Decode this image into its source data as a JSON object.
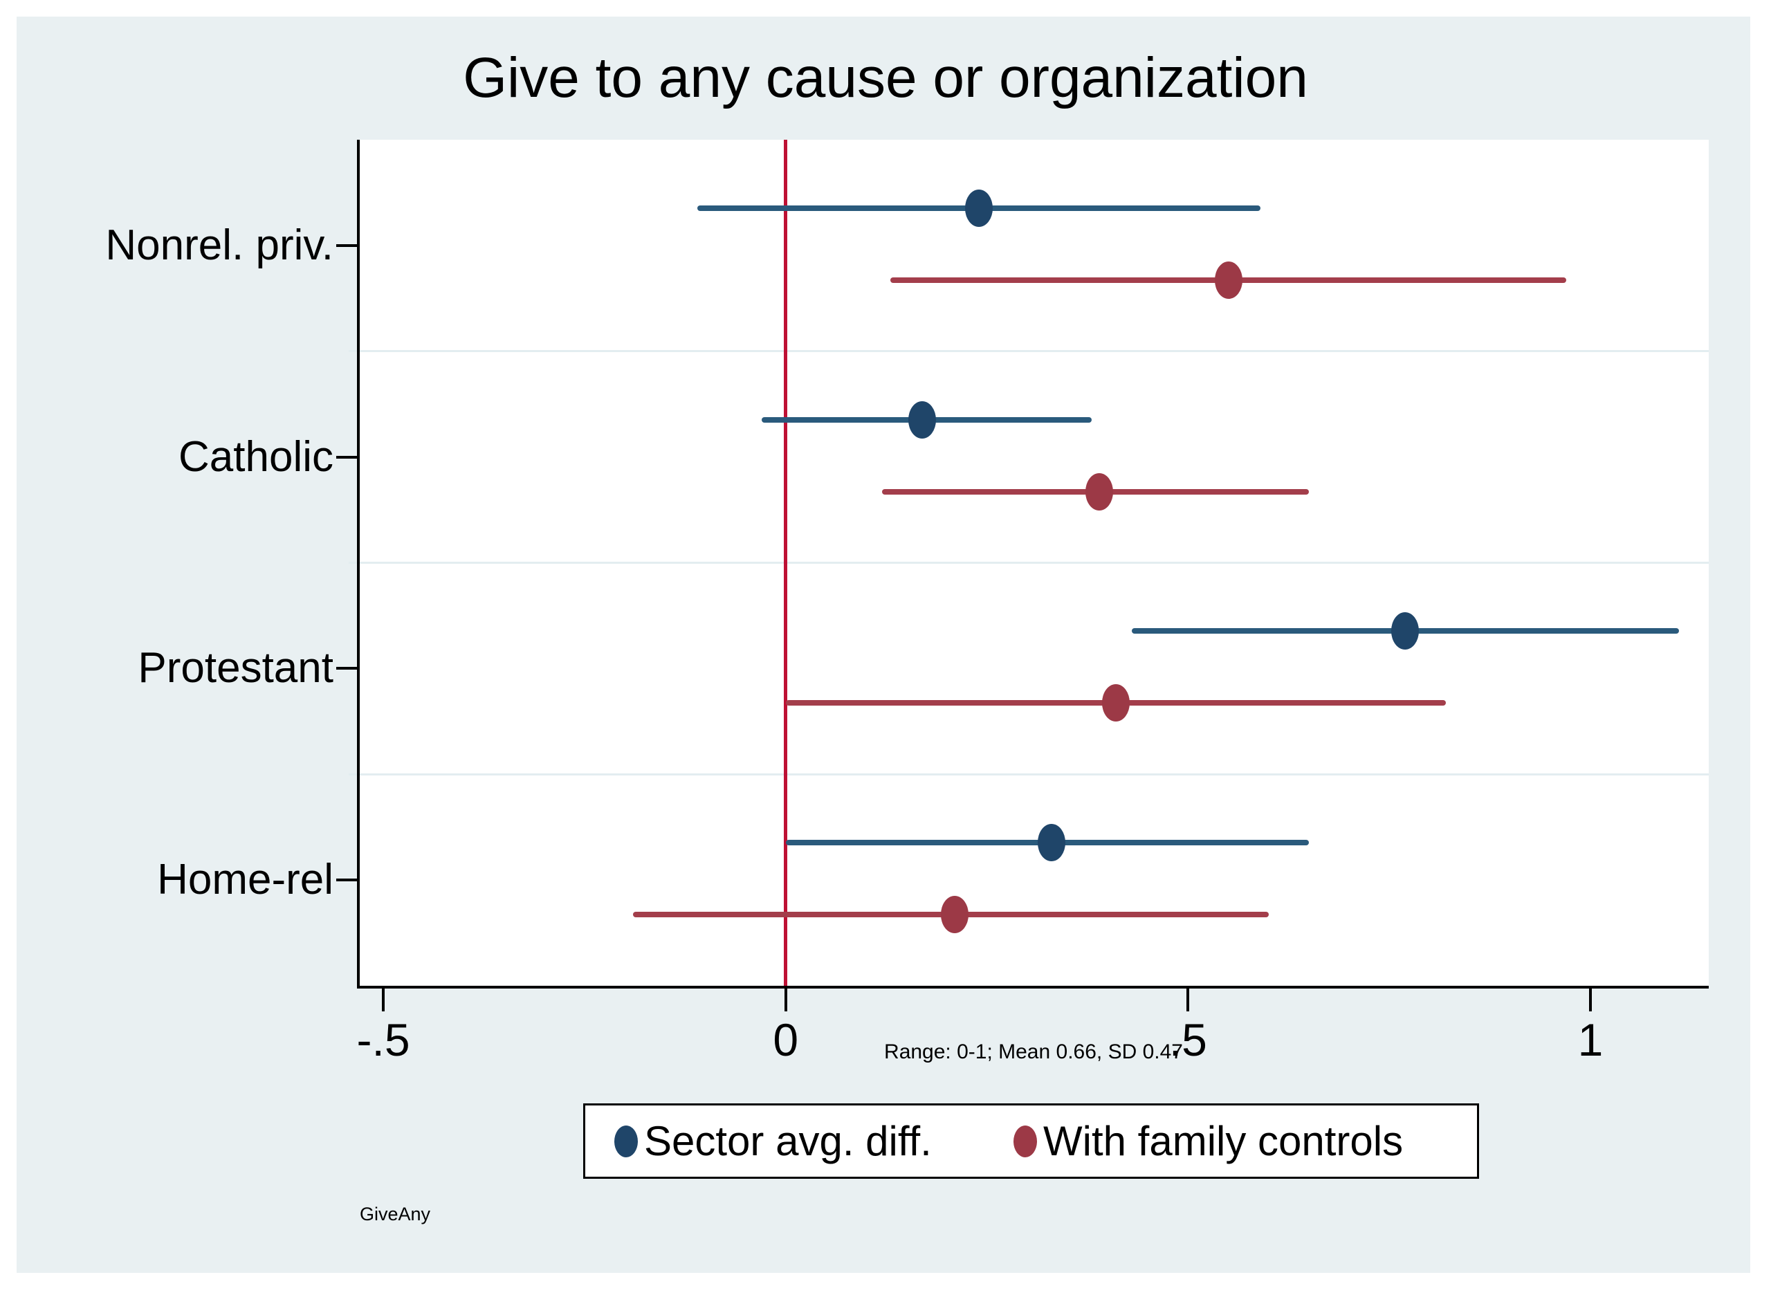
{
  "page": {
    "background": "#FFFFFF",
    "panel_background": "#E9F0F2"
  },
  "chart_data": {
    "type": "scatter",
    "subtype": "coefficient-plot-with-ci",
    "title": "Give to any cause or organization",
    "categories": [
      "Nonrel. priv.",
      "Catholic",
      "Protestant",
      "Home-rel"
    ],
    "series": [
      {
        "name": "Sector avg. diff.",
        "marker_color": "#1F4569",
        "line_color": "#2A5A7C",
        "points": [
          {
            "category": "Nonrel. priv.",
            "est": 0.24,
            "lo": -0.11,
            "hi": 0.59
          },
          {
            "category": "Catholic",
            "est": 0.17,
            "lo": -0.03,
            "hi": 0.38
          },
          {
            "category": "Protestant",
            "est": 0.77,
            "lo": 0.43,
            "hi": 1.11
          },
          {
            "category": "Home-rel",
            "est": 0.33,
            "lo": 0.0,
            "hi": 0.65
          }
        ]
      },
      {
        "name": "With family controls",
        "marker_color": "#9C3946",
        "line_color": "#A33E4B",
        "points": [
          {
            "category": "Nonrel. priv.",
            "est": 0.55,
            "lo": 0.13,
            "hi": 0.97
          },
          {
            "category": "Catholic",
            "est": 0.39,
            "lo": 0.12,
            "hi": 0.65
          },
          {
            "category": "Protestant",
            "est": 0.41,
            "lo": 0.0,
            "hi": 0.82
          },
          {
            "category": "Home-rel",
            "est": 0.21,
            "lo": -0.19,
            "hi": 0.6
          }
        ]
      }
    ],
    "xticks": [
      {
        "value": -0.5,
        "label": "-.5"
      },
      {
        "value": 0,
        "label": "0"
      },
      {
        "value": 0.5,
        "label": ".5"
      },
      {
        "value": 1,
        "label": "1"
      }
    ],
    "xlim": [
      -0.531,
      1.147
    ],
    "refline": {
      "x": 0,
      "color": "#BE1134"
    },
    "grid": {
      "category_boundary_lines": true,
      "color": "#E3EDF0"
    },
    "legend_position": "bottom",
    "note": "Range: 0-1; Mean 0.66, SD 0.47",
    "watermark": "GiveAny"
  }
}
